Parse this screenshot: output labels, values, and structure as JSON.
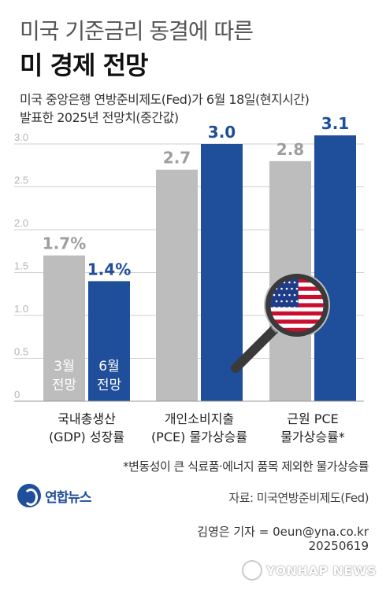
{
  "header": {
    "title_line1": "미국 기준금리 동결에 따른",
    "title_line2": "미 경제 전망",
    "subtitle_line1": "미국 중앙은행 연방준비제도(Fed)가 6월 18일(현지시간)",
    "subtitle_line2": "발표한 2025년 전망치(중간값)"
  },
  "chart_data": {
    "type": "bar",
    "categories": [
      [
        "국내총생산",
        "(GDP) 성장률"
      ],
      [
        "개인소비지출",
        "(PCE) 물가상승률"
      ],
      [
        "근원 PCE",
        "물가상승률*"
      ]
    ],
    "series": [
      {
        "name": "3월 전망",
        "name_lines": [
          "3월",
          "전망"
        ],
        "values": [
          1.7,
          2.7,
          2.8
        ],
        "labels": [
          "1.7%",
          "2.7",
          "2.8"
        ]
      },
      {
        "name": "6월 전망",
        "name_lines": [
          "6월",
          "전망"
        ],
        "values": [
          1.4,
          3.0,
          3.1
        ],
        "labels": [
          "1.4%",
          "3.0",
          "3.1"
        ]
      }
    ],
    "yticks": [
      "0",
      "0.5",
      "1.0",
      "1.5",
      "2.0",
      "2.5",
      "3.0"
    ],
    "ylim": [
      0,
      3.0
    ],
    "grid": true,
    "colors": {
      "march": "#bdbdbd",
      "june": "#1f4e9a",
      "grid": "#cfcfcf",
      "tick": "#b5b5b5"
    }
  },
  "footer": {
    "footnote": "*변동성이 큰 식료품·에너지 품목 제외한 물가상승률",
    "logo_text": "연합뉴스",
    "source": "자료: 미국연방준비제도(Fed)",
    "reporter": "김영은 기자 = 0eun@yna.co.kr",
    "date": "20250619",
    "watermark": "YONHAP NEWS"
  },
  "decoration": {
    "icon": "magnifier-us-flag-icon"
  }
}
